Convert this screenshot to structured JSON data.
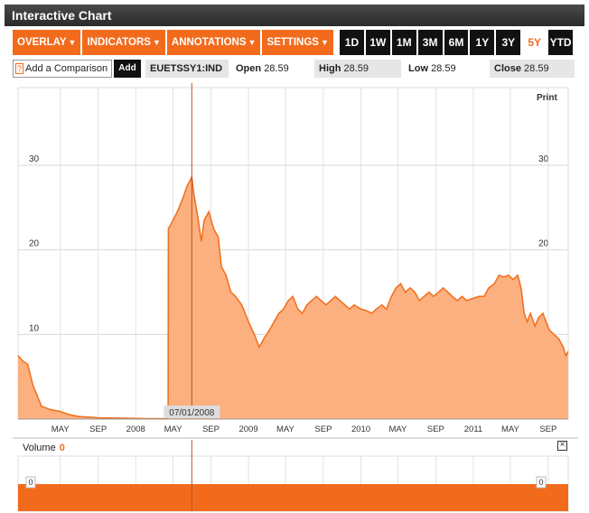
{
  "window": {
    "title": "Interactive Chart"
  },
  "toolbar": {
    "menus": [
      {
        "label": "OVERLAY"
      },
      {
        "label": "INDICATORS"
      },
      {
        "label": "ANNOTATIONS"
      },
      {
        "label": "SETTINGS"
      }
    ],
    "ranges": [
      "1D",
      "1W",
      "1M",
      "3M",
      "6M",
      "1Y",
      "3Y",
      "5Y",
      "YTD"
    ],
    "active_range": "5Y"
  },
  "info": {
    "compare_icon": "?",
    "compare_label": "Add a Comparison",
    "add_label": "Add",
    "ticker": "EUETSSY1:IND",
    "open_label": "Open",
    "open_value": "28.59",
    "high_label": "High",
    "high_value": "28.59",
    "low_label": "Low",
    "low_value": "28.59",
    "close_label": "Close",
    "close_value": "28.59"
  },
  "print_label": "Print",
  "volume": {
    "label": "Volume",
    "value": "0",
    "axis_label_left": "0",
    "axis_label_right": "0",
    "close_icon": "×"
  },
  "colors": {
    "accent": "#f26b1d",
    "area": "#fdb07f",
    "line": "#f07222",
    "cursor": "#b5541c"
  },
  "chart_data": {
    "type": "area",
    "title": "",
    "xlabel": "",
    "ylabel": "",
    "ylim": [
      0,
      30
    ],
    "yticks": [
      10,
      20,
      30
    ],
    "grid": true,
    "cursor": {
      "x": "2008-07-01",
      "label": "07/01/2008"
    },
    "x_tick_labels": [
      {
        "date": "2007-05-01",
        "label": "MAY"
      },
      {
        "date": "2007-09-01",
        "label": "SEP"
      },
      {
        "date": "2008-01-01",
        "label": "2008"
      },
      {
        "date": "2008-05-01",
        "label": "MAY"
      },
      {
        "date": "2008-09-01",
        "label": "SEP"
      },
      {
        "date": "2009-01-01",
        "label": "2009"
      },
      {
        "date": "2009-05-01",
        "label": "MAY"
      },
      {
        "date": "2009-09-01",
        "label": "SEP"
      },
      {
        "date": "2010-01-01",
        "label": "2010"
      },
      {
        "date": "2010-05-01",
        "label": "MAY"
      },
      {
        "date": "2010-09-01",
        "label": "SEP"
      },
      {
        "date": "2011-01-01",
        "label": "2011"
      },
      {
        "date": "2011-05-01",
        "label": "MAY"
      },
      {
        "date": "2011-09-01",
        "label": "SEP"
      }
    ],
    "series": [
      {
        "values": [
          [
            "2006-12-15",
            7.5
          ],
          [
            "2007-01-01",
            6.8
          ],
          [
            "2007-01-15",
            6.5
          ],
          [
            "2007-02-01",
            4.0
          ],
          [
            "2007-02-15",
            2.8
          ],
          [
            "2007-03-01",
            1.5
          ],
          [
            "2007-04-01",
            1.1
          ],
          [
            "2007-05-01",
            0.9
          ],
          [
            "2007-06-01",
            0.5
          ],
          [
            "2007-07-01",
            0.3
          ],
          [
            "2007-09-01",
            0.15
          ],
          [
            "2007-12-01",
            0.1
          ],
          [
            "2008-02-01",
            0.05
          ],
          [
            "2008-04-01",
            0.05
          ],
          [
            "2008-04-15",
            0.05
          ],
          [
            "2008-04-16",
            22.5
          ],
          [
            "2008-05-01",
            23.5
          ],
          [
            "2008-05-15",
            24.5
          ],
          [
            "2008-06-01",
            26.0
          ],
          [
            "2008-06-15",
            27.5
          ],
          [
            "2008-07-01",
            28.6
          ],
          [
            "2008-07-08",
            26.5
          ],
          [
            "2008-07-20",
            24.0
          ],
          [
            "2008-08-01",
            21.0
          ],
          [
            "2008-08-10",
            23.5
          ],
          [
            "2008-08-25",
            24.5
          ],
          [
            "2008-09-10",
            22.5
          ],
          [
            "2008-09-25",
            21.5
          ],
          [
            "2008-10-05",
            18.0
          ],
          [
            "2008-10-20",
            17.0
          ],
          [
            "2008-11-05",
            15.0
          ],
          [
            "2008-11-20",
            14.5
          ],
          [
            "2008-12-10",
            13.5
          ],
          [
            "2009-01-01",
            11.5
          ],
          [
            "2009-01-20",
            10.0
          ],
          [
            "2009-02-05",
            8.5
          ],
          [
            "2009-02-20",
            9.5
          ],
          [
            "2009-03-10",
            10.5
          ],
          [
            "2009-03-25",
            11.5
          ],
          [
            "2009-04-10",
            12.5
          ],
          [
            "2009-04-25",
            13.0
          ],
          [
            "2009-05-10",
            14.0
          ],
          [
            "2009-05-25",
            14.5
          ],
          [
            "2009-06-10",
            13.0
          ],
          [
            "2009-06-25",
            12.5
          ],
          [
            "2009-07-10",
            13.5
          ],
          [
            "2009-07-25",
            14.0
          ],
          [
            "2009-08-10",
            14.5
          ],
          [
            "2009-08-25",
            14.0
          ],
          [
            "2009-09-10",
            13.5
          ],
          [
            "2009-09-25",
            14.0
          ],
          [
            "2009-10-10",
            14.5
          ],
          [
            "2009-10-25",
            14.0
          ],
          [
            "2009-11-10",
            13.5
          ],
          [
            "2009-11-25",
            13.0
          ],
          [
            "2009-12-10",
            13.5
          ],
          [
            "2010-01-01",
            13.0
          ],
          [
            "2010-01-20",
            12.8
          ],
          [
            "2010-02-05",
            12.5
          ],
          [
            "2010-02-20",
            13.0
          ],
          [
            "2010-03-10",
            13.5
          ],
          [
            "2010-03-25",
            13.0
          ],
          [
            "2010-04-10",
            14.5
          ],
          [
            "2010-04-25",
            15.5
          ],
          [
            "2010-05-10",
            16.0
          ],
          [
            "2010-05-25",
            15.0
          ],
          [
            "2010-06-10",
            15.5
          ],
          [
            "2010-06-25",
            15.0
          ],
          [
            "2010-07-10",
            14.0
          ],
          [
            "2010-07-25",
            14.5
          ],
          [
            "2010-08-10",
            15.0
          ],
          [
            "2010-08-25",
            14.5
          ],
          [
            "2010-09-10",
            15.0
          ],
          [
            "2010-09-25",
            15.5
          ],
          [
            "2010-10-10",
            15.0
          ],
          [
            "2010-10-25",
            14.5
          ],
          [
            "2010-11-10",
            14.0
          ],
          [
            "2010-11-25",
            14.5
          ],
          [
            "2010-12-10",
            14.0
          ],
          [
            "2011-01-01",
            14.3
          ],
          [
            "2011-01-20",
            14.5
          ],
          [
            "2011-02-05",
            14.5
          ],
          [
            "2011-02-20",
            15.5
          ],
          [
            "2011-03-10",
            16.0
          ],
          [
            "2011-03-25",
            17.0
          ],
          [
            "2011-04-10",
            16.8
          ],
          [
            "2011-04-25",
            17.0
          ],
          [
            "2011-05-10",
            16.5
          ],
          [
            "2011-05-25",
            17.0
          ],
          [
            "2011-06-05",
            15.5
          ],
          [
            "2011-06-15",
            12.5
          ],
          [
            "2011-06-25",
            11.5
          ],
          [
            "2011-07-05",
            12.5
          ],
          [
            "2011-07-20",
            11.0
          ],
          [
            "2011-08-01",
            12.0
          ],
          [
            "2011-08-15",
            12.5
          ],
          [
            "2011-08-25",
            11.5
          ],
          [
            "2011-09-05",
            10.5
          ],
          [
            "2011-09-20",
            10.0
          ],
          [
            "2011-10-05",
            9.5
          ],
          [
            "2011-10-20",
            8.5
          ],
          [
            "2011-10-28",
            7.5
          ],
          [
            "2011-11-05",
            8.0
          ]
        ]
      }
    ],
    "volume_values": [
      0
    ]
  }
}
